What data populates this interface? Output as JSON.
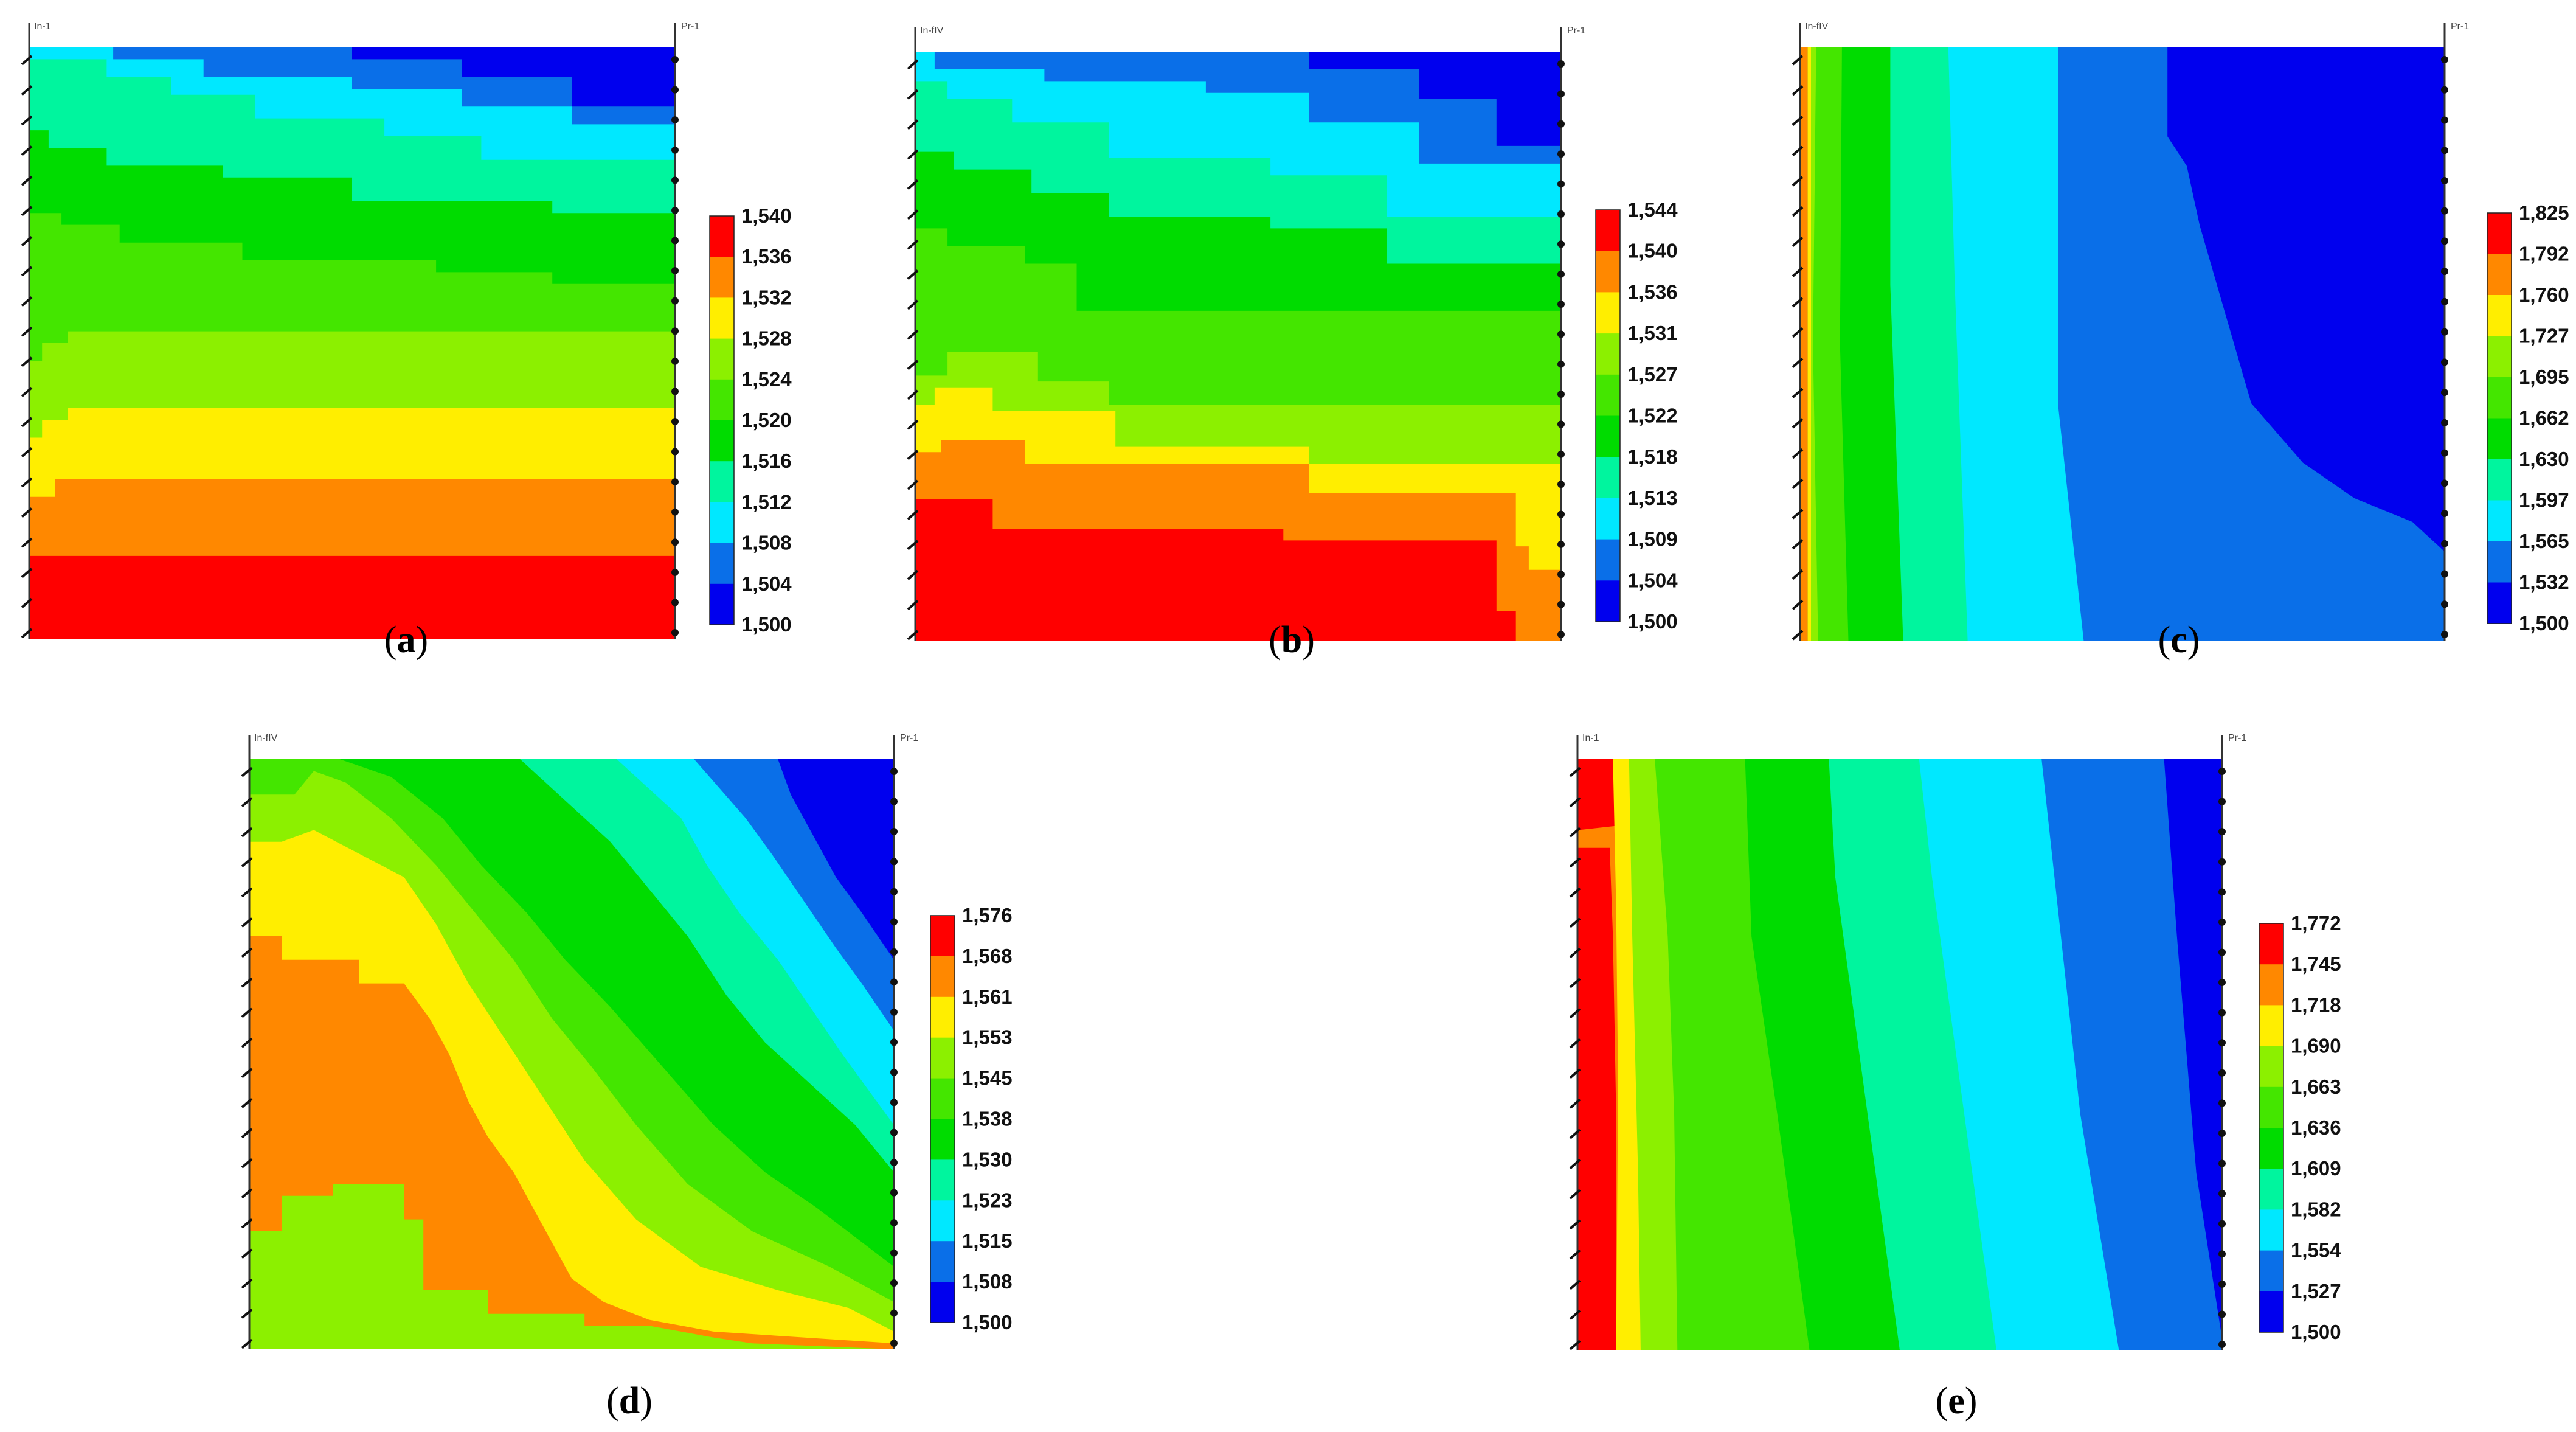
{
  "figure": {
    "colors": [
      "#0000ee",
      "#0a6fe8",
      "#00e8ff",
      "#00f59e",
      "#00dc00",
      "#44e600",
      "#8cf000",
      "#ffee00",
      "#ff8800",
      "#ff0000"
    ],
    "chart_data": [
      {
        "type": "heatmap",
        "id": "a",
        "caption": "a",
        "left_label": "In-1",
        "right_label": "Pr-1",
        "colorbar_ticks": [
          "1,540",
          "1,536",
          "1,532",
          "1,528",
          "1,524",
          "1,520",
          "1,516",
          "1,512",
          "1,508",
          "1,504",
          "1,500"
        ],
        "value_range": [
          1.5,
          1.54
        ]
      },
      {
        "type": "heatmap",
        "id": "b",
        "caption": "b",
        "left_label": "In-fIV",
        "right_label": "Pr-1",
        "colorbar_ticks": [
          "1,544",
          "1,540",
          "1,536",
          "1,531",
          "1,527",
          "1,522",
          "1,518",
          "1,513",
          "1,509",
          "1,504",
          "1,500"
        ],
        "value_range": [
          1.5,
          1.544
        ]
      },
      {
        "type": "heatmap",
        "id": "c",
        "caption": "c",
        "left_label": "In-fIV",
        "right_label": "Pr-1",
        "colorbar_ticks": [
          "1,825",
          "1,792",
          "1,760",
          "1,727",
          "1,695",
          "1,662",
          "1,630",
          "1,597",
          "1,565",
          "1,532",
          "1,500"
        ],
        "value_range": [
          1.5,
          1.825
        ]
      },
      {
        "type": "heatmap",
        "id": "d",
        "caption": "d",
        "left_label": "In-fIV",
        "right_label": "Pr-1",
        "colorbar_ticks": [
          "1,576",
          "1,568",
          "1,561",
          "1,553",
          "1,545",
          "1,538",
          "1,530",
          "1,523",
          "1,515",
          "1,508",
          "1,500"
        ],
        "value_range": [
          1.5,
          1.576
        ]
      },
      {
        "type": "heatmap",
        "id": "e",
        "caption": "e",
        "left_label": "In-1",
        "right_label": "Pr-1",
        "colorbar_ticks": [
          "1,772",
          "1,745",
          "1,718",
          "1,690",
          "1,663",
          "1,636",
          "1,609",
          "1,582",
          "1,554",
          "1,527",
          "1,500"
        ],
        "value_range": [
          1.5,
          1.772
        ]
      }
    ]
  }
}
